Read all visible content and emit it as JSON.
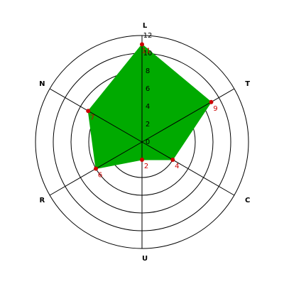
{
  "chart_data": {
    "type": "radar",
    "categories": [
      "L",
      "T",
      "C",
      "U",
      "R",
      "N"
    ],
    "values": [
      11,
      9,
      4,
      2,
      6,
      7
    ],
    "rlim": [
      0,
      12
    ],
    "rticks": [
      0,
      2,
      4,
      6,
      8,
      10,
      12
    ],
    "color": "#00aa00",
    "marker_color": "#cc0000",
    "grid": true
  }
}
